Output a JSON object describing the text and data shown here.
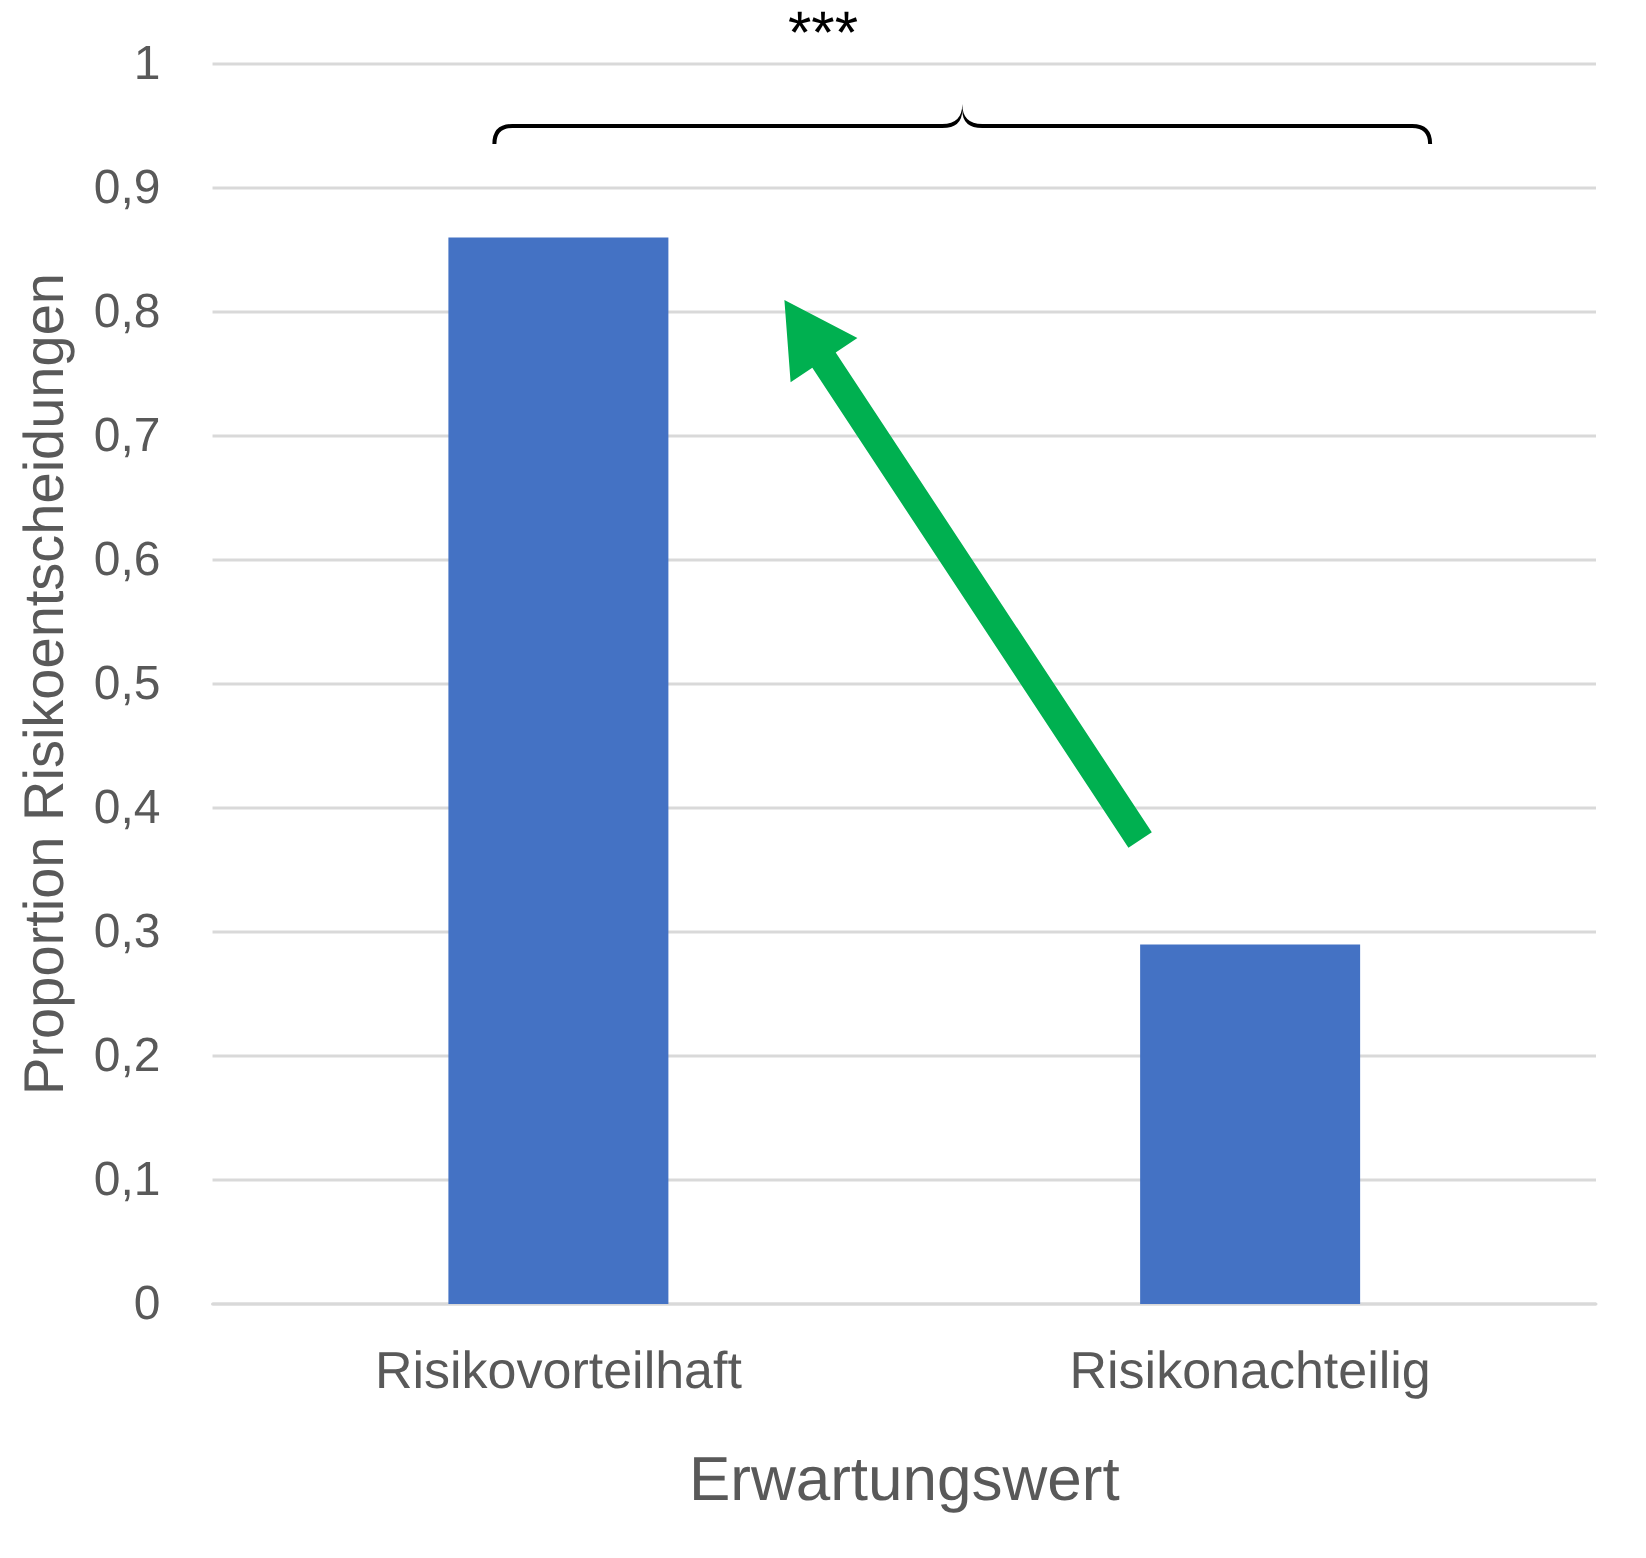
{
  "chart_data": {
    "type": "bar",
    "xlabel": "Erwartungswert",
    "ylabel": "Proportion Risikoentscheidungen",
    "categories": [
      "Risikovorteilhaft",
      "Risikonachteilig"
    ],
    "values": [
      0.86,
      0.29
    ],
    "color": "#4472c4",
    "ylim": [
      0,
      1
    ],
    "yticks": [
      0,
      {
        "value": 0.1,
        "label": "0,1"
      },
      {
        "value": 0.2,
        "label": "0,2"
      },
      {
        "value": 0.3,
        "label": "0,3"
      },
      {
        "value": 0.4,
        "label": "0,4"
      },
      {
        "value": 0.5,
        "label": "0,5"
      },
      {
        "value": 0.6,
        "label": "0,6"
      },
      {
        "value": 0.7,
        "label": "0,7"
      },
      {
        "value": 0.8,
        "label": "0,8"
      },
      {
        "value": 0.9,
        "label": "0,9"
      },
      1
    ],
    "grid": "y",
    "annotations": [
      "***"
    ]
  }
}
